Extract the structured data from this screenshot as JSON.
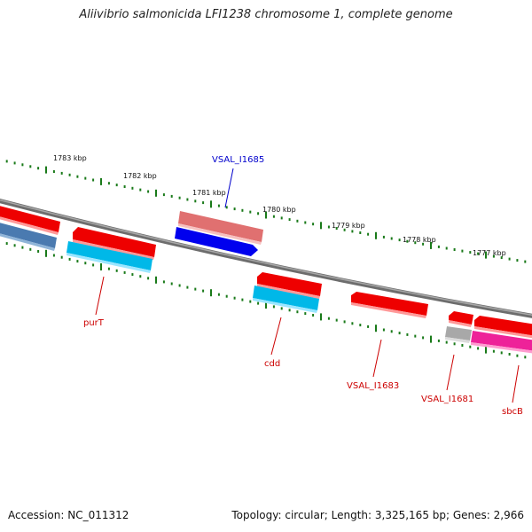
{
  "title": "Aliivibrio salmonicida LFI1238 chromosome 1, complete genome",
  "footer": {
    "accession": "Accession: NC_011312",
    "summary": "Topology: circular; Length: 3,325,165 bp; Genes: 2,966"
  },
  "ticks": [
    {
      "label": "1783 kbp"
    },
    {
      "label": "1782 kbp"
    },
    {
      "label": "1781 kbp"
    },
    {
      "label": "1780 kbp"
    },
    {
      "label": "1779 kbp"
    },
    {
      "label": "1778 kbp"
    },
    {
      "label": "1777 kbp"
    }
  ],
  "gene_labels": [
    {
      "name": "VSAL_I1685",
      "color": "#0000cc"
    },
    {
      "name": "purT",
      "color": "#cc0000"
    },
    {
      "name": "cdd",
      "color": "#cc0000"
    },
    {
      "name": "VSAL_I1683",
      "color": "#cc0000"
    },
    {
      "name": "VSAL_I1681",
      "color": "#cc0000"
    },
    {
      "name": "sbcB",
      "color": "#cc0000"
    }
  ],
  "colors": {
    "backbone": "#808080",
    "tick": "#1a7a1a",
    "gene_red": "#ee0000",
    "gene_pink": "#e88080",
    "gene_blue": "#0000ee",
    "gene_cyan": "#00b8e8",
    "gene_steel": "#4a7ab0",
    "gene_magenta": "#ee2299",
    "gene_grey": "#b0b0b0"
  }
}
